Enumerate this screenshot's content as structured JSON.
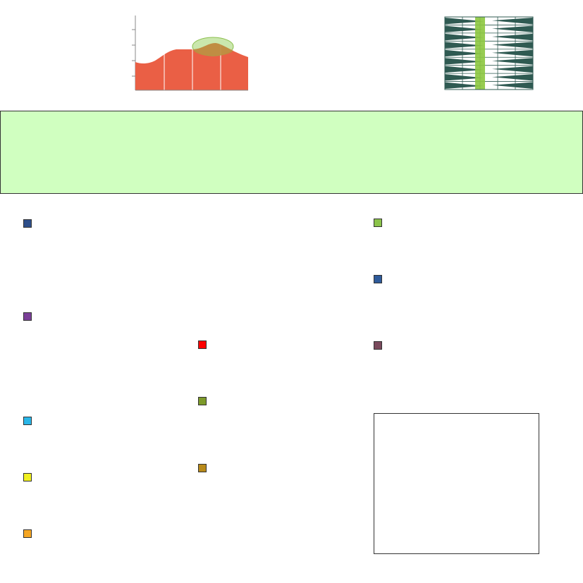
{
  "area_chart": {
    "fill_color": "#ea5f45",
    "highlight_color": "#9ed36a",
    "overlay_fill_color": "#c08a40",
    "ellipse_stroke_color": "#8cbf4e",
    "gridline_color": "#ffffff",
    "axis_color": "#888888"
  },
  "pattern_chart": {
    "wedge_color": "#2f5a52",
    "band_color": "#8cc63f",
    "grid_color": "#2f5a52"
  },
  "banner": {
    "background": "#d0ffc0",
    "border_color": "#333333"
  },
  "swatches": [
    {
      "color": "#2e4f8a"
    },
    {
      "color": "#7b3f98"
    },
    {
      "color": "#29b6e8"
    },
    {
      "color": "#f0f020"
    },
    {
      "color": "#f5a623"
    },
    {
      "color": "#ff0000"
    },
    {
      "color": "#7d9a2a"
    },
    {
      "color": "#b88a1a"
    },
    {
      "color": "#8bc34a"
    },
    {
      "color": "#2e5a9a"
    },
    {
      "color": "#7a4a5c"
    }
  ],
  "info_box": {
    "border_color": "#333333"
  }
}
